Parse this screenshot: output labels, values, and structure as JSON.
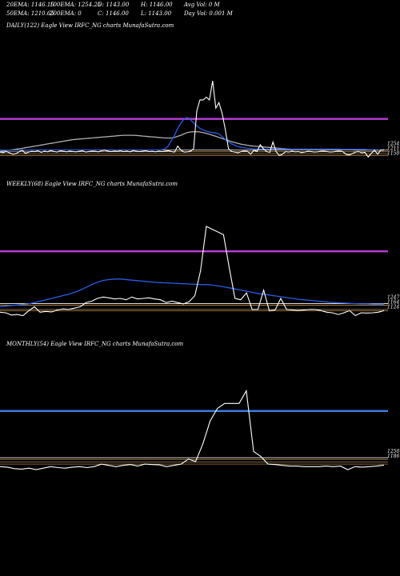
{
  "header": {
    "row1": [
      "20EMA: 1146.15",
      "100EMA: 1254.25",
      "O: 1143.00",
      "H: 1146.00",
      "Avg Vol: 0  M"
    ],
    "row2": [
      "50EMA: 1210.65",
      "200EMA: 0",
      "C: 1146.00",
      "L: 1143.00",
      "Day Vol: 0.001 M"
    ]
  },
  "colors": {
    "price": "#ffffff",
    "ema_blue": "#2a5ce6",
    "ema_gray": "#b0b0b0",
    "purple": "#b43cd2",
    "blue_level": "#3a7be0",
    "orange": "#e0a050",
    "tan": "#c8a070",
    "white_h": "#ffffff",
    "background": "#000000"
  },
  "chart_data": [
    {
      "type": "line",
      "panel_title": "DAILY(122) Eagle   View  IRFC_NG charts MunafaSutra.com",
      "x": [
        0,
        1,
        2,
        3,
        4,
        5,
        6,
        7,
        8,
        9,
        10,
        11,
        12,
        13,
        14,
        15,
        16,
        17,
        18,
        19,
        20,
        21,
        22,
        23,
        24,
        25,
        26,
        27,
        28,
        29,
        30,
        31,
        32,
        33,
        34,
        35,
        36,
        37,
        38,
        39,
        40,
        41,
        42,
        43,
        44,
        45,
        46,
        47,
        48,
        49,
        50,
        51,
        52,
        53,
        54,
        55,
        56,
        57,
        58,
        59,
        60,
        61,
        62,
        63,
        64,
        65,
        66,
        67,
        68,
        69,
        70,
        71,
        72,
        73,
        74,
        75,
        76,
        77,
        78,
        79,
        80,
        81,
        82,
        83,
        84,
        85,
        86,
        87,
        88,
        89,
        90,
        91,
        92,
        93,
        94,
        95,
        96,
        97,
        98,
        99,
        100,
        101,
        102,
        103,
        104,
        105,
        106,
        107,
        108,
        109,
        110,
        111,
        112,
        113,
        114,
        115,
        116,
        117,
        118,
        119,
        120,
        121
      ],
      "series": [
        {
          "color": "#ffffff",
          "values": [
            1138,
            1136,
            1140,
            1135,
            1130,
            1132,
            1139,
            1145,
            1133,
            1138,
            1141,
            1140,
            1143,
            1137,
            1142,
            1139,
            1144,
            1140,
            1138,
            1143,
            1141,
            1139,
            1142,
            1140,
            1139,
            1141,
            1143,
            1138,
            1140,
            1142,
            1141,
            1139,
            1143,
            1145,
            1142,
            1140,
            1142,
            1141,
            1143,
            1140,
            1142,
            1139,
            1144,
            1141,
            1140,
            1142,
            1143,
            1140,
            1141,
            1139,
            1142,
            1140,
            1141,
            1143,
            1140,
            1138,
            1160,
            1145,
            1138,
            1139,
            1141,
            1150,
            1290,
            1330,
            1330,
            1340,
            1330,
            1400,
            1300,
            1320,
            1280,
            1220,
            1150,
            1140,
            1138,
            1135,
            1140,
            1142,
            1141,
            1130,
            1145,
            1140,
            1165,
            1150,
            1140,
            1137,
            1175,
            1140,
            1125,
            1130,
            1140,
            1138,
            1142,
            1139,
            1140,
            1136,
            1138,
            1141,
            1140,
            1138,
            1139,
            1141,
            1142,
            1140,
            1138,
            1139,
            1141,
            1142,
            1140,
            1130,
            1128,
            1132,
            1138,
            1140,
            1135,
            1137,
            1120,
            1133,
            1145,
            1130,
            1146,
            1146
          ]
        },
        {
          "color": "#2a5ce6",
          "values": [
            1145,
            1145,
            1145,
            1145,
            1145,
            1145,
            1145,
            1145,
            1145,
            1145,
            1146,
            1146,
            1146,
            1146,
            1146,
            1146,
            1146,
            1146,
            1146,
            1146,
            1146,
            1146,
            1146,
            1146,
            1146,
            1146,
            1146,
            1146,
            1146,
            1146,
            1146,
            1146,
            1146,
            1146,
            1146,
            1146,
            1146,
            1146,
            1146,
            1146,
            1146,
            1146,
            1146,
            1146,
            1146,
            1146,
            1146,
            1146,
            1146,
            1146,
            1146,
            1147,
            1150,
            1160,
            1180,
            1200,
            1225,
            1245,
            1260,
            1265,
            1258,
            1245,
            1235,
            1225,
            1220,
            1215,
            1212,
            1210,
            1208,
            1205,
            1195,
            1185,
            1175,
            1168,
            1163,
            1158,
            1155,
            1154,
            1152,
            1151,
            1150,
            1149,
            1149,
            1149,
            1149,
            1149,
            1149,
            1149,
            1149,
            1149,
            1149,
            1149,
            1149,
            1149,
            1149,
            1149,
            1149,
            1149,
            1149,
            1149,
            1149,
            1149,
            1149,
            1149,
            1149,
            1149,
            1149,
            1149,
            1148,
            1148,
            1148,
            1148,
            1148,
            1148,
            1148,
            1148,
            1147,
            1147,
            1147,
            1147,
            1146,
            1146
          ]
        },
        {
          "color": "#b0b0b0",
          "values": [
            1140,
            1142,
            1144,
            1145,
            1147,
            1148,
            1150,
            1152,
            1154,
            1156,
            1158,
            1160,
            1162,
            1164,
            1166,
            1168,
            1170,
            1172,
            1174,
            1176,
            1178,
            1180,
            1182,
            1184,
            1185,
            1186,
            1187,
            1188,
            1189,
            1190,
            1191,
            1192,
            1193,
            1194,
            1195,
            1196,
            1197,
            1198,
            1199,
            1200,
            1200,
            1200,
            1200,
            1199,
            1198,
            1197,
            1196,
            1195,
            1194,
            1193,
            1192,
            1191,
            1190,
            1190,
            1190,
            1192,
            1196,
            1200,
            1205,
            1210,
            1212,
            1213,
            1213,
            1212,
            1210,
            1207,
            1204,
            1200,
            1196,
            1192,
            1188,
            1184,
            1180,
            1176,
            1173,
            1170,
            1167,
            1165,
            1163,
            1161,
            1160,
            1159,
            1158,
            1157,
            1156,
            1155,
            1154,
            1153,
            1152,
            1151,
            1150,
            1149,
            1148,
            1148,
            1148,
            1148,
            1148,
            1148,
            1147,
            1147,
            1147,
            1147,
            1147,
            1146,
            1146,
            1146,
            1146,
            1146,
            1146,
            1146,
            1146,
            1146,
            1145,
            1145,
            1145,
            1145,
            1145,
            1145,
            1145,
            1145,
            1145,
            1145
          ]
        }
      ],
      "hlines": [
        {
          "y": 1260,
          "color": "#b43cd2",
          "width": 2.5
        },
        {
          "y": 1146,
          "color": "#ffffff",
          "width": 0.8
        },
        {
          "y": 1139,
          "color": "#e0a050",
          "width": 0.7
        },
        {
          "y": 1132,
          "color": "#c8a070",
          "width": 0.6
        },
        {
          "y": 1125,
          "color": "#e0a050",
          "width": 0.6
        }
      ],
      "right_labels": [
        "1254",
        "1211",
        "1150"
      ],
      "ylim": [
        1050,
        1580
      ]
    },
    {
      "type": "line",
      "panel_title": "WEEKLY(68) Eagle   View  IRFC_NG charts MunafaSutra.com",
      "x": [
        0,
        1,
        2,
        3,
        4,
        5,
        6,
        7,
        8,
        9,
        10,
        11,
        12,
        13,
        14,
        15,
        16,
        17,
        18,
        19,
        20,
        21,
        22,
        23,
        24,
        25,
        26,
        27,
        28,
        29,
        30,
        31,
        32,
        33,
        34,
        35,
        36,
        37,
        38,
        39,
        40,
        41,
        42,
        43,
        44,
        45,
        46,
        47,
        48,
        49,
        50,
        51,
        52,
        53,
        54,
        55,
        56,
        57,
        58,
        59,
        60,
        61,
        62,
        63,
        64,
        65,
        66,
        67
      ],
      "series": [
        {
          "color": "#ffffff",
          "values": [
            1140,
            1138,
            1130,
            1132,
            1128,
            1145,
            1160,
            1140,
            1143,
            1141,
            1148,
            1152,
            1150,
            1155,
            1160,
            1175,
            1180,
            1190,
            1195,
            1192,
            1188,
            1190,
            1185,
            1195,
            1188,
            1190,
            1192,
            1188,
            1185,
            1175,
            1180,
            1175,
            1170,
            1178,
            1200,
            1290,
            1450,
            1440,
            1430,
            1420,
            1300,
            1190,
            1185,
            1210,
            1150,
            1150,
            1220,
            1145,
            1148,
            1190,
            1150,
            1148,
            1146,
            1148,
            1150,
            1150,
            1146,
            1140,
            1138,
            1132,
            1138,
            1146,
            1128,
            1138,
            1137,
            1138,
            1140,
            1146
          ]
        },
        {
          "color": "#2a5ce6",
          "values": [
            1160,
            1162,
            1164,
            1166,
            1168,
            1170,
            1175,
            1180,
            1185,
            1190,
            1195,
            1200,
            1205,
            1212,
            1220,
            1230,
            1240,
            1248,
            1255,
            1258,
            1260,
            1260,
            1258,
            1256,
            1254,
            1252,
            1250,
            1248,
            1247,
            1246,
            1245,
            1244,
            1243,
            1242,
            1241,
            1240,
            1240,
            1238,
            1235,
            1232,
            1228,
            1224,
            1220,
            1216,
            1212,
            1208,
            1205,
            1202,
            1199,
            1196,
            1193,
            1190,
            1187,
            1185,
            1183,
            1181,
            1179,
            1177,
            1175,
            1174,
            1173,
            1172,
            1171,
            1170,
            1170,
            1169,
            1169,
            1169
          ]
        }
      ],
      "hlines": [
        {
          "y": 1360,
          "color": "#b43cd2",
          "width": 2.5
        },
        {
          "y": 1171,
          "color": "#ffffff",
          "width": 0.8
        },
        {
          "y": 1165,
          "color": "#e0a050",
          "width": 0.7
        },
        {
          "y": 1150,
          "color": "#c8a070",
          "width": 0.6
        },
        {
          "y": 1145,
          "color": "#e0a050",
          "width": 0.6
        }
      ],
      "right_labels": [
        "1247",
        "1164",
        "1124"
      ],
      "ylim": [
        1060,
        1580
      ]
    },
    {
      "type": "line",
      "panel_title": "MONTHLY(54) Eagle   View  IRFC_NG charts MunafaSutra.com",
      "x": [
        0,
        1,
        2,
        3,
        4,
        5,
        6,
        7,
        8,
        9,
        10,
        11,
        12,
        13,
        14,
        15,
        16,
        17,
        18,
        19,
        20,
        21,
        22,
        23,
        24,
        25,
        26,
        27,
        28,
        29,
        30,
        31,
        32,
        33,
        34,
        35,
        36,
        37,
        38,
        39,
        40,
        41,
        42,
        43,
        44,
        45,
        46,
        47,
        48,
        49,
        50,
        51,
        52,
        53
      ],
      "series": [
        {
          "color": "#ffffff",
          "values": [
            1140,
            1138,
            1132,
            1130,
            1134,
            1128,
            1134,
            1140,
            1136,
            1134,
            1138,
            1140,
            1136,
            1140,
            1150,
            1145,
            1140,
            1145,
            1148,
            1142,
            1150,
            1148,
            1147,
            1140,
            1145,
            1150,
            1170,
            1160,
            1230,
            1320,
            1370,
            1390,
            1390,
            1390,
            1440,
            1200,
            1180,
            1150,
            1148,
            1145,
            1142,
            1142,
            1140,
            1140,
            1140,
            1142,
            1140,
            1142,
            1128,
            1140,
            1138,
            1140,
            1142,
            1146
          ]
        }
      ],
      "hlines": [
        {
          "y": 1360,
          "color": "#3a7be0",
          "width": 2.5
        },
        {
          "y": 1175,
          "color": "#ffffff",
          "width": 0.8
        },
        {
          "y": 1168,
          "color": "#e0a050",
          "width": 0.7
        },
        {
          "y": 1158,
          "color": "#c8a070",
          "width": 0.6
        },
        {
          "y": 1150,
          "color": "#e0a050",
          "width": 0.6
        }
      ],
      "right_labels": [
        "1250",
        "1186"
      ],
      "ylim": [
        1030,
        1600
      ]
    }
  ]
}
